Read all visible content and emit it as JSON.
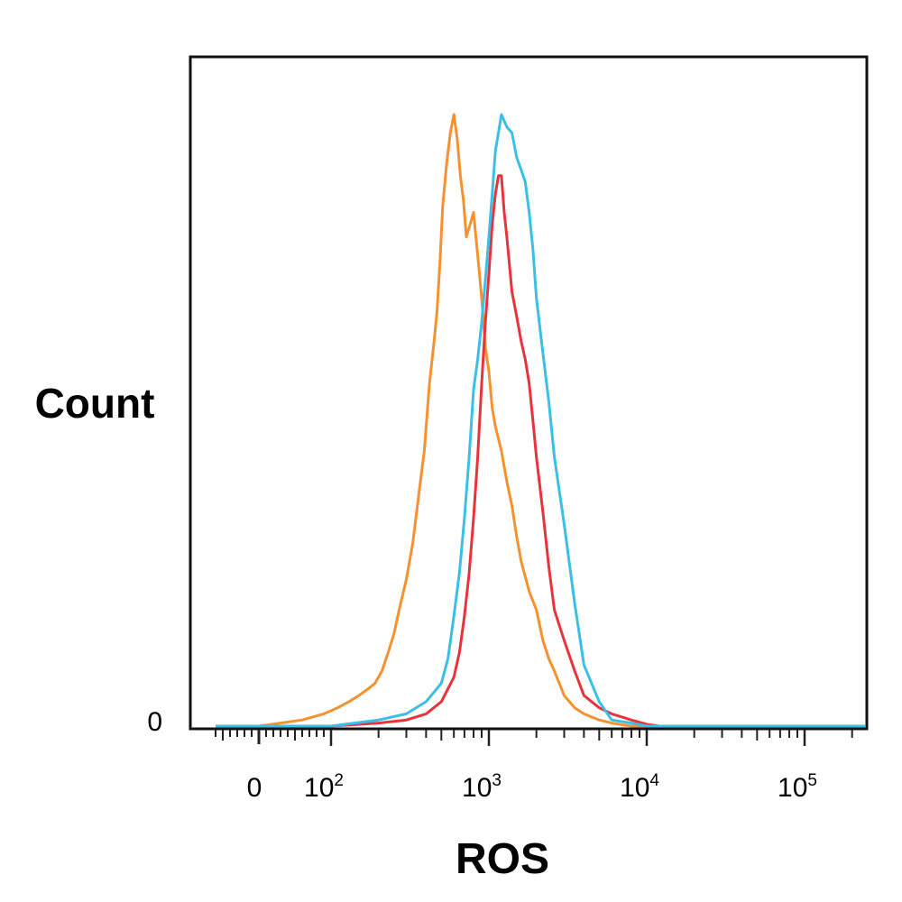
{
  "chart_data": {
    "type": "line",
    "title": "",
    "xlabel": "ROS",
    "ylabel": "Count",
    "x_scale": "biexponential",
    "xlim": [
      -60,
      250000
    ],
    "ylim": [
      0,
      100
    ],
    "y_tick_labels": [
      "0"
    ],
    "x_tick_labels": [
      {
        "base": "0",
        "exp": "",
        "value": 0
      },
      {
        "base": "10",
        "exp": "2",
        "value": 100
      },
      {
        "base": "10",
        "exp": "3",
        "value": 1000
      },
      {
        "base": "10",
        "exp": "4",
        "value": 10000
      },
      {
        "base": "10",
        "exp": "5",
        "value": 100000
      }
    ],
    "grid": false,
    "legend": "none",
    "series": [
      {
        "color": "#f5922f",
        "x": [
          -60,
          0,
          30,
          60,
          90,
          110,
          130,
          150,
          170,
          190,
          210,
          230,
          250,
          270,
          300,
          330,
          360,
          390,
          420,
          450,
          470,
          490,
          510,
          540,
          570,
          600,
          630,
          660,
          690,
          720,
          760,
          800,
          850,
          900,
          950,
          1000,
          1050,
          1100,
          1200,
          1300,
          1400,
          1500,
          1600,
          1800,
          2000,
          2200,
          2400,
          2600,
          3000,
          3500,
          4000,
          5000,
          6000,
          8000,
          12000,
          250000
        ],
        "y": [
          0,
          0,
          0.5,
          1,
          2,
          3,
          4,
          5,
          6,
          7,
          9,
          12,
          15,
          19,
          24,
          30,
          38,
          45,
          56,
          63,
          68,
          76,
          85,
          92,
          97,
          100,
          96,
          90,
          86,
          80,
          82,
          84,
          77,
          70,
          62,
          58,
          52,
          49,
          45,
          40,
          36,
          31,
          27,
          22,
          19,
          14,
          11,
          9,
          5,
          3,
          2,
          1,
          0.5,
          0,
          0,
          0
        ]
      },
      {
        "color": "#e8333b",
        "x": [
          -60,
          0,
          100,
          200,
          300,
          400,
          500,
          600,
          650,
          700,
          750,
          800,
          850,
          900,
          950,
          1000,
          1050,
          1100,
          1150,
          1200,
          1250,
          1300,
          1400,
          1500,
          1600,
          1700,
          1800,
          1900,
          2000,
          2200,
          2400,
          2600,
          3000,
          3500,
          4000,
          5000,
          6000,
          8000,
          10000,
          12000,
          250000
        ],
        "y": [
          0,
          0,
          0,
          0.5,
          1,
          2,
          4,
          8,
          12,
          18,
          25,
          34,
          44,
          56,
          66,
          74,
          82,
          87,
          90,
          90,
          84,
          80,
          71,
          67,
          63,
          60,
          56,
          50,
          44,
          35,
          26,
          19,
          14,
          9,
          5,
          3,
          2,
          1,
          0.3,
          0,
          0
        ]
      },
      {
        "color": "#3bbfe6",
        "x": [
          -60,
          0,
          100,
          200,
          300,
          400,
          500,
          550,
          600,
          650,
          700,
          750,
          800,
          850,
          900,
          950,
          1000,
          1050,
          1100,
          1200,
          1300,
          1400,
          1500,
          1600,
          1700,
          1800,
          1900,
          2000,
          2200,
          2400,
          2600,
          3000,
          3500,
          4000,
          5000,
          6000,
          8000,
          10000,
          250000
        ],
        "y": [
          0,
          0,
          0,
          1,
          2,
          4,
          7,
          11,
          18,
          25,
          34,
          44,
          55,
          60,
          66,
          73,
          80,
          87,
          94,
          100,
          98,
          97,
          93,
          91,
          89,
          84,
          78,
          70,
          61,
          53,
          44,
          33,
          20,
          10,
          4,
          1,
          0.5,
          0,
          0
        ]
      }
    ]
  }
}
